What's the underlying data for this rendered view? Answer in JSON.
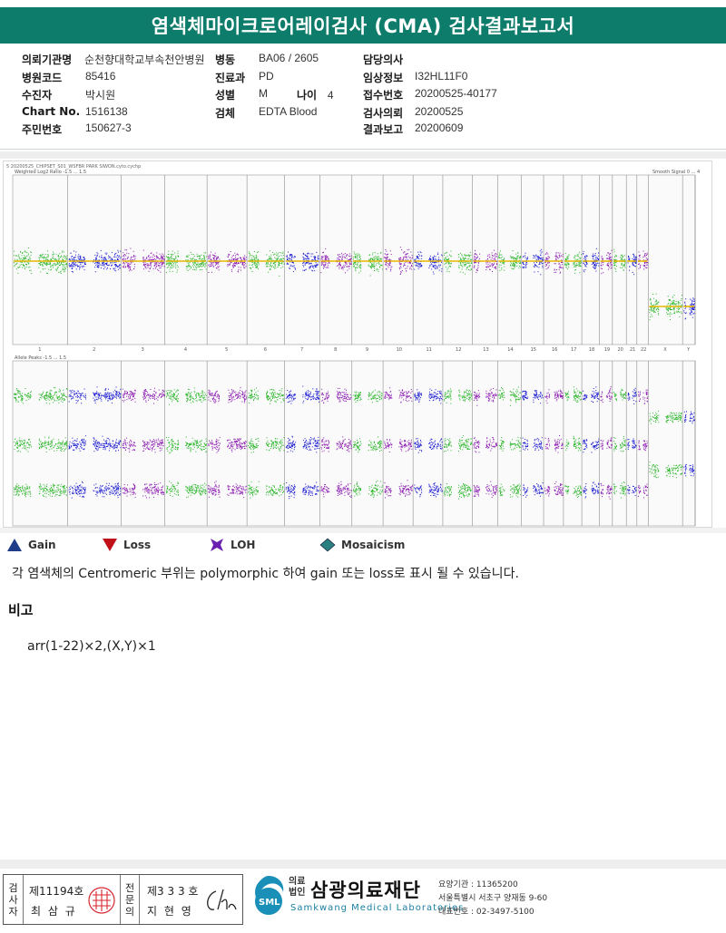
{
  "header": {
    "title": "염색체마이크로어레이검사 (CMA) 검사결과보고서"
  },
  "info": {
    "col1": [
      {
        "label": "의뢰기관명",
        "value": "순천향대학교부속천안병원"
      },
      {
        "label": "병원코드",
        "value": "85416"
      },
      {
        "label": "수진자",
        "value": "박시원"
      },
      {
        "label": "Chart No.",
        "value": "1516138"
      },
      {
        "label": "주민번호",
        "value": "150627-3"
      }
    ],
    "col2": [
      {
        "label": "병동",
        "value": "BA06 / 2605"
      },
      {
        "label": "진료과",
        "value": "PD"
      },
      {
        "label": "성별",
        "value": "M"
      },
      {
        "label": "검체",
        "value": "EDTA Blood"
      }
    ],
    "age": {
      "label": "나이",
      "value": "4"
    },
    "col3": [
      {
        "label": "담당의사",
        "value": ""
      },
      {
        "label": "임상정보",
        "value": "I32HL11F0"
      },
      {
        "label": "접수번호",
        "value": "20200525-40177"
      },
      {
        "label": "검사의뢰",
        "value": "20200525"
      },
      {
        "label": "결과보고",
        "value": "20200609"
      }
    ]
  },
  "plot": {
    "file_label": "5 20200525_CHIPSET_S01_WSFBR PARK SIWON.cyto.cychp",
    "top_title": "Weighted Log2 Ratio -1.5 ... 1.5",
    "top_right_title": "Smooth Signal 0 ... 4",
    "bottom_title": "Allele Peaks -1.5 ... 1.5",
    "chromosomes": [
      "1",
      "2",
      "3",
      "4",
      "5",
      "6",
      "7",
      "8",
      "9",
      "10",
      "11",
      "12",
      "13",
      "14",
      "15",
      "16",
      "17",
      "18",
      "19",
      "20",
      "21",
      "22",
      "X",
      "Y"
    ],
    "colors": {
      "green": "#2fb62f",
      "blue": "#1a1ad0",
      "purple": "#8b1bb0",
      "smooth": "#e6b800"
    }
  },
  "legend": [
    {
      "icon": "triangle-up-icon",
      "label": "Gain",
      "color": "#1f3c88"
    },
    {
      "icon": "triangle-down-icon",
      "label": "Loss",
      "color": "#c0101a"
    },
    {
      "icon": "star-icon",
      "label": "LOH",
      "color": "#6a1fb0"
    },
    {
      "icon": "diamond-icon",
      "label": "Mosaicism",
      "color": "#2a8080"
    }
  ],
  "note": "각 염색체의 Centromeric 부위는 polymorphic 하여 gain 또는 loss로 표시 될 수 있습니다.",
  "remark": {
    "title": "비고",
    "body": "arr(1-22)×2,(X,Y)×1"
  },
  "footer": {
    "examiner_label": "검사자",
    "examiner_license": "제11194호",
    "examiner_name": "최 삼 규",
    "doctor_label": "전문의",
    "doctor_license": "제3 3 3 호",
    "doctor_name": "지 현 영",
    "org_prefix_top": "의료",
    "org_prefix_bottom": "법인",
    "org_name": "삼광의료재단",
    "org_english": "Samkwang Medical Laboratories",
    "org_logo_text": "SML",
    "org_code": "요양기관 : 11365200",
    "org_address": "서울특별시 서초구 양재동 9-60",
    "org_phone": "대표번호 : 02-3497-5100"
  }
}
